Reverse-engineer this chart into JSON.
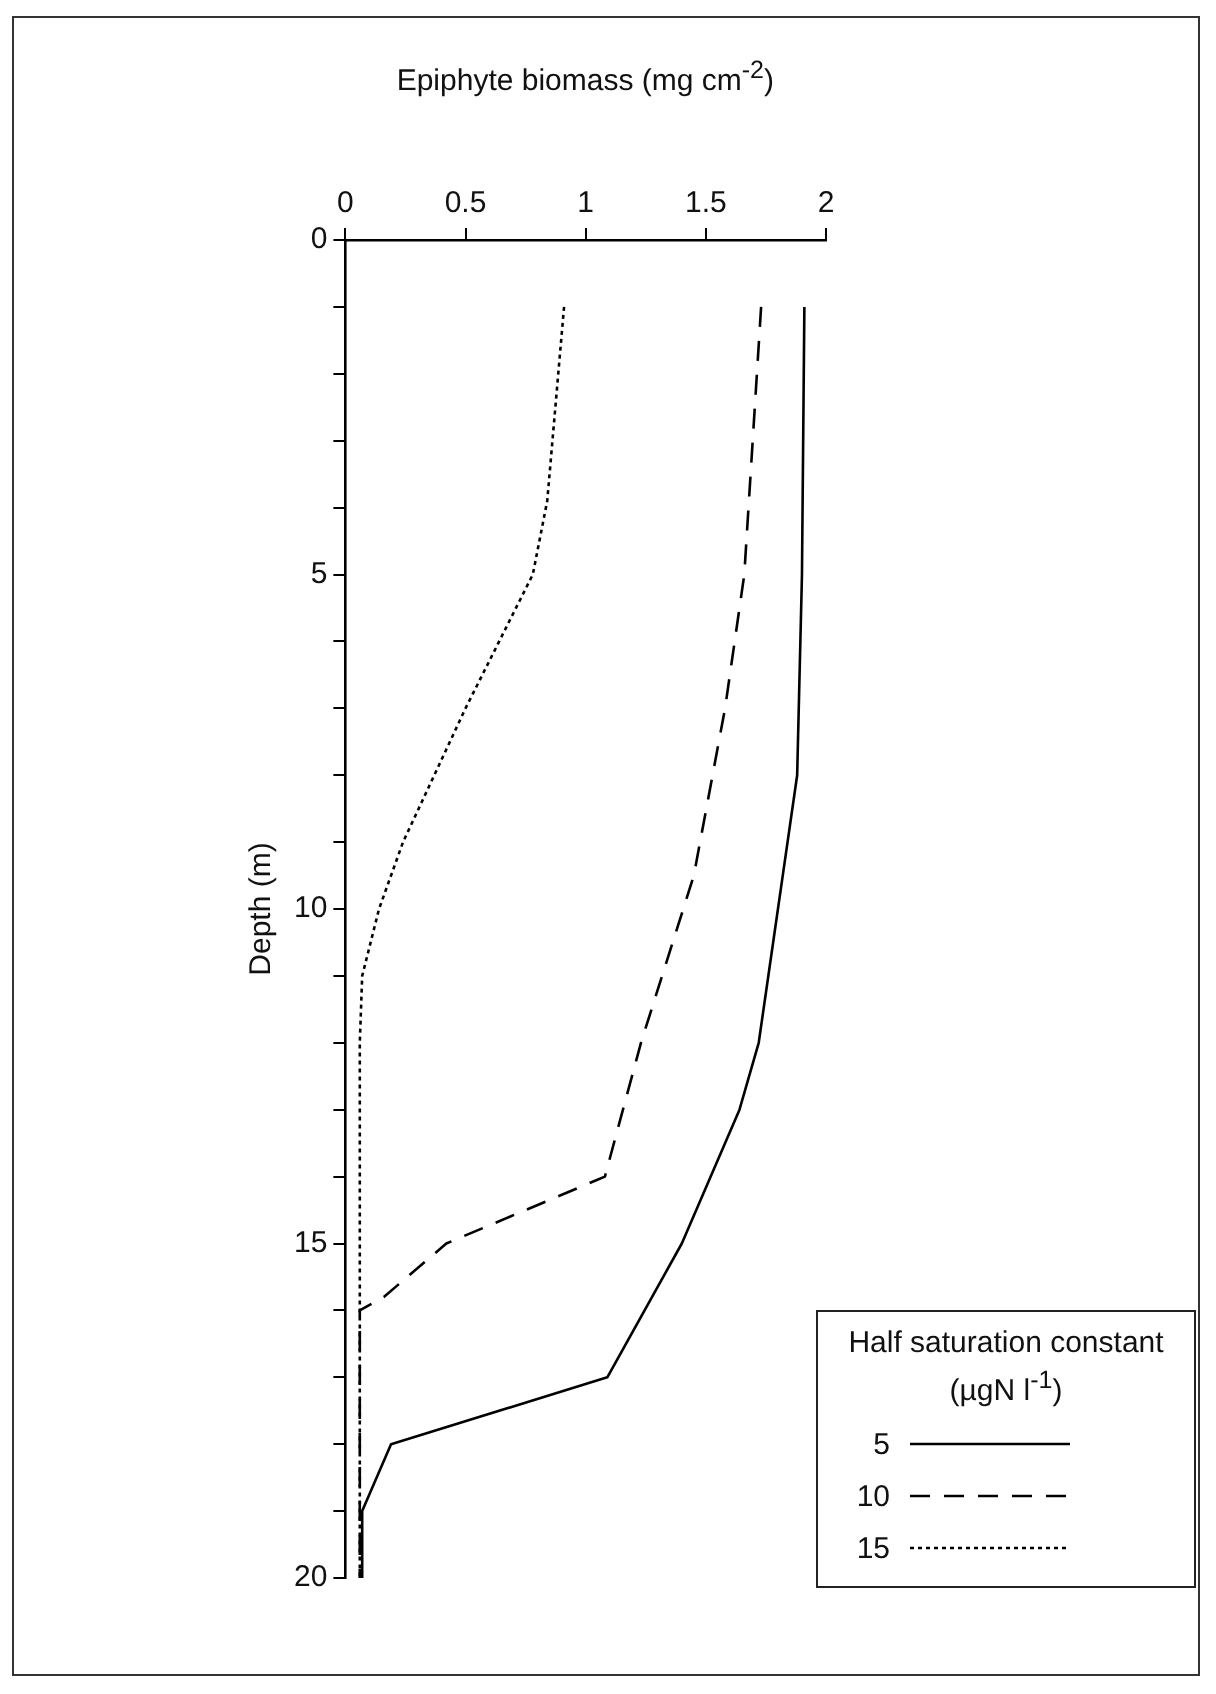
{
  "chart_data": {
    "type": "line",
    "xlabel": "Epiphyte biomass (mg cm$^{-2}$)",
    "ylabel": "Depth (m)",
    "legend_title": "Half saturation constant (µgN l$^{-1}$)",
    "xlim": [
      0,
      2
    ],
    "xticks": [
      0,
      0.5,
      1,
      1.5,
      2
    ],
    "ylim": [
      20,
      0
    ],
    "yticks": [
      0,
      {
        "value": 1,
        "label": null
      },
      {
        "value": 2,
        "label": null
      },
      {
        "value": 3,
        "label": null
      },
      {
        "value": 4,
        "label": null
      },
      5,
      {
        "value": 6,
        "label": null
      },
      {
        "value": 7,
        "label": null
      },
      {
        "value": 8,
        "label": null
      },
      {
        "value": 9,
        "label": null
      },
      10,
      {
        "value": 11,
        "label": null
      },
      {
        "value": 12,
        "label": null
      },
      {
        "value": 13,
        "label": null
      },
      {
        "value": 14,
        "label": null
      },
      15,
      {
        "value": 16,
        "label": null
      },
      {
        "value": 17,
        "label": null
      },
      {
        "value": 18,
        "label": null
      },
      {
        "value": 19,
        "label": null
      },
      20
    ],
    "grid": false,
    "legend": "bottom right",
    "marker": "none",
    "series": [
      {
        "name": "5",
        "color": "#000000",
        "line_style": "solid",
        "x": [
          1.91,
          1.9,
          1.88,
          1.84,
          1.78,
          1.72,
          1.64,
          1.4,
          1.09,
          0.19,
          0.07,
          0.07
        ],
        "values": [
          1,
          5,
          8,
          9,
          10.5,
          12,
          13,
          15,
          17,
          18,
          19,
          20
        ]
      },
      {
        "name": "10",
        "color": "#000000",
        "line_style": "dashed",
        "x": [
          1.73,
          1.66,
          1.58,
          1.45,
          1.23,
          1.08,
          0.42,
          0.16,
          0.06,
          0.06
        ],
        "values": [
          1,
          5,
          7,
          9.5,
          12,
          14,
          15,
          15.8,
          16,
          20
        ]
      },
      {
        "name": "15",
        "color": "#000000",
        "line_style": "dotted",
        "x": [
          0.91,
          0.84,
          0.78,
          0.5,
          0.37,
          0.24,
          0.14,
          0.07,
          0.06,
          0.06
        ],
        "values": [
          1,
          3.9,
          5,
          7,
          8,
          9,
          10,
          11,
          12,
          20
        ]
      }
    ]
  }
}
